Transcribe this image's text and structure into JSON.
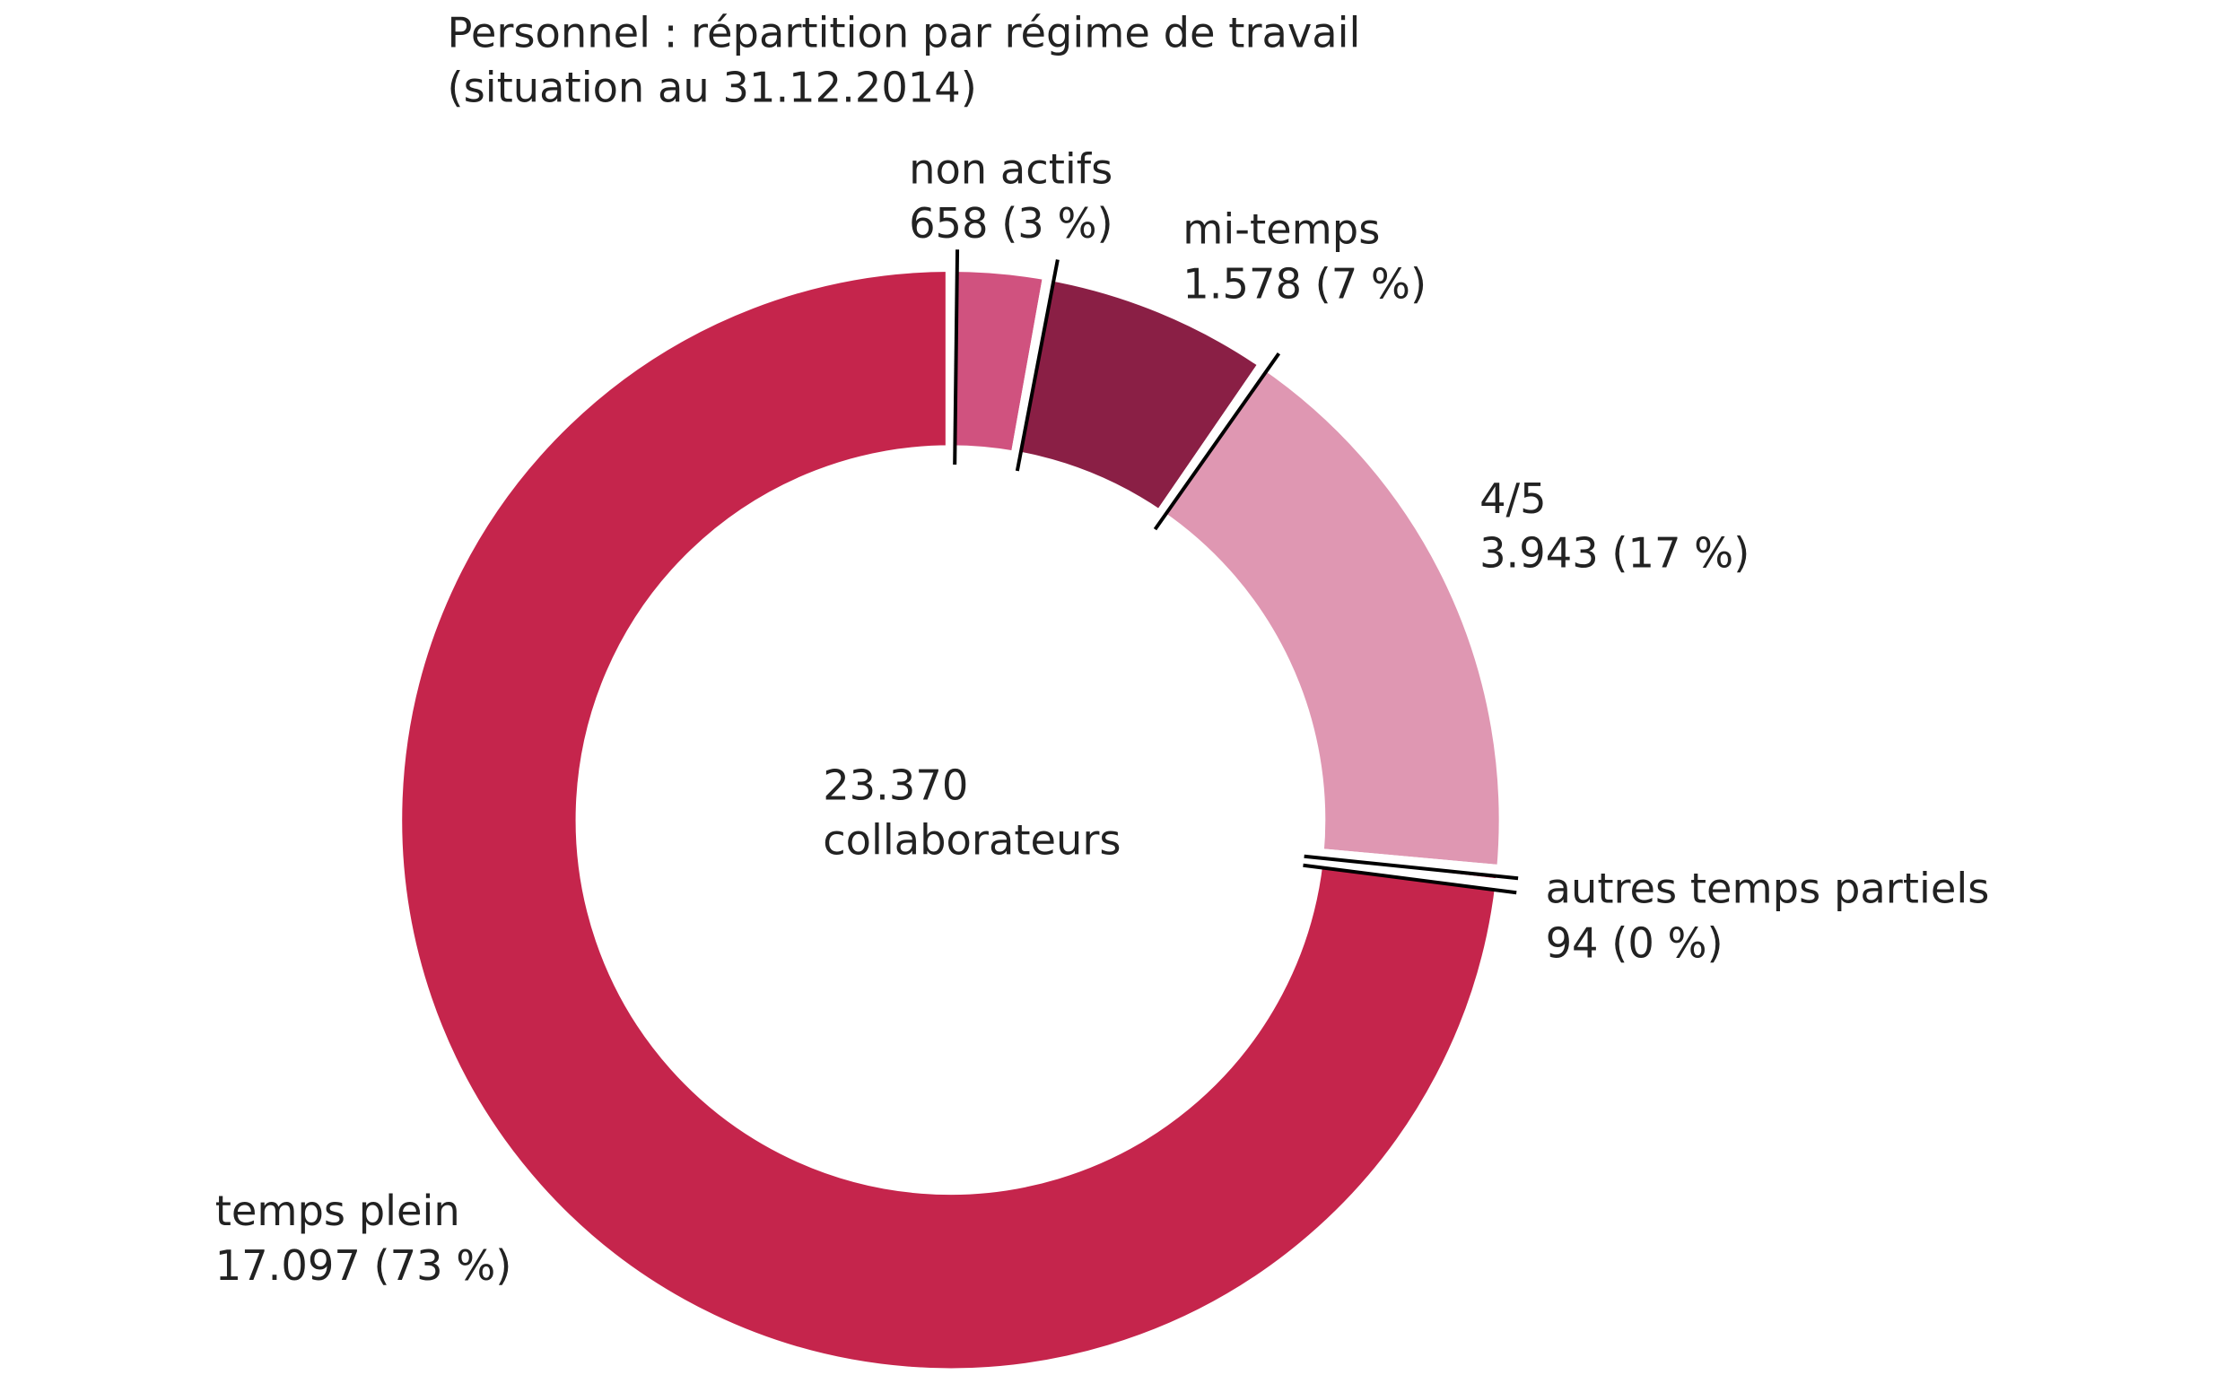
{
  "chart_data": {
    "type": "donut",
    "title": "Personnel : répartition par régime de travail",
    "subtitle": "(situation au 31.12.2014)",
    "center_text": [
      "23.370",
      "collaborateurs"
    ],
    "categories": [
      "non actifs",
      "mi-temps",
      "4/5",
      "autres temps partiels",
      "temps plein"
    ],
    "values": [
      658,
      1578,
      3943,
      94,
      17097
    ],
    "value_labels": [
      "658 (3 %)",
      "1.578 (7 %)",
      "3.943 (17 %)",
      "94 (0 %)",
      "17.097 (73 %)"
    ],
    "colors": [
      "#d0527f",
      "#8a1f45",
      "#df97b2",
      "#c5254c",
      "#c5254c"
    ]
  }
}
